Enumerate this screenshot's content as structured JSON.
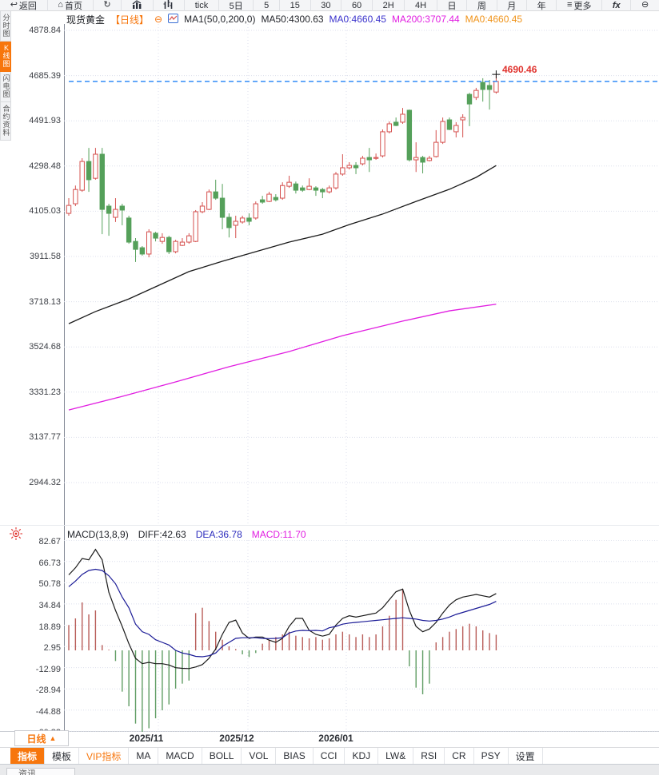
{
  "toolbar": {
    "items": [
      {
        "icon": "back-icon",
        "label": "返回"
      },
      {
        "icon": "home-icon",
        "label": "首页"
      },
      {
        "icon": "refresh-icon",
        "label": ""
      },
      {
        "icon": "chart-icon",
        "label": ""
      },
      {
        "icon": "volume-icon",
        "label": ""
      },
      {
        "icon": "",
        "label": "tick"
      },
      {
        "icon": "",
        "label": "5日"
      },
      {
        "icon": "",
        "label": "5"
      },
      {
        "icon": "",
        "label": "15"
      },
      {
        "icon": "",
        "label": "30"
      },
      {
        "icon": "",
        "label": "60"
      },
      {
        "icon": "",
        "label": "2H"
      },
      {
        "icon": "",
        "label": "4H"
      },
      {
        "icon": "",
        "label": "日"
      },
      {
        "icon": "",
        "label": "周"
      },
      {
        "icon": "",
        "label": "月"
      },
      {
        "icon": "",
        "label": "年"
      },
      {
        "icon": "menu-icon",
        "label": "更多"
      },
      {
        "icon": "fx-icon",
        "label": "fx"
      },
      {
        "icon": "zoom-out-icon",
        "label": ""
      }
    ]
  },
  "sidebar": {
    "items": [
      {
        "label": "分时图",
        "active": false
      },
      {
        "label": "K线图",
        "active": true
      },
      {
        "label": "闪电图",
        "active": false
      },
      {
        "label": "合约资料",
        "active": false
      }
    ]
  },
  "symbol_header": {
    "name": "现货黄金",
    "period": "【日线】",
    "collapse": "⊖",
    "ma1": "MA1(50,0,200,0)",
    "ma50": "MA50:4300.63",
    "ma0_blue": "MA0:4660.45",
    "ma200": "MA200:3707.44",
    "ma0_orange": "MA0:4660.45"
  },
  "macd_header": {
    "title": "MACD(13,8,9)",
    "diff": "DIFF:42.63",
    "dea": "DEA:36.78",
    "macd": "MACD:11.70"
  },
  "price_flag": "4690.46",
  "period_box": {
    "label": "日线",
    "arrow": "▲"
  },
  "indicator_bar": {
    "tabs": [
      {
        "label": "指标",
        "style": "active"
      },
      {
        "label": "模板",
        "style": ""
      },
      {
        "label": "VIP指标",
        "style": "vip"
      },
      {
        "label": "MA",
        "style": ""
      },
      {
        "label": "MACD",
        "style": ""
      },
      {
        "label": "BOLL",
        "style": ""
      },
      {
        "label": "VOL",
        "style": ""
      },
      {
        "label": "BIAS",
        "style": ""
      },
      {
        "label": "CCI",
        "style": ""
      },
      {
        "label": "KDJ",
        "style": ""
      },
      {
        "label": "LW&",
        "style": ""
      },
      {
        "label": "RSI",
        "style": ""
      },
      {
        "label": "CR",
        "style": ""
      },
      {
        "label": "PSY",
        "style": ""
      },
      {
        "label": "设置",
        "style": ""
      }
    ]
  },
  "bottom_tab": "资讯",
  "colors": {
    "accent_orange": "#f7760c",
    "candle_up": "#d5504e",
    "candle_down": "#55a05a",
    "ma50_line": "#1a1a1a",
    "ma200_line": "#e11ee1",
    "last_price_line": "#1f80f5",
    "flag_red": "#e0332e",
    "macd_bar_up": "#b85c58",
    "macd_bar_down": "#5f9c63",
    "diff_line": "#1a1a1a",
    "dea_line": "#1a1a96",
    "grid": "#dcdfec"
  },
  "chart_data": [
    {
      "type": "candlestick",
      "title": "现货黄金 日线",
      "y_ticks": [
        4878.84,
        4685.39,
        4491.93,
        4298.48,
        4105.03,
        3911.58,
        3718.13,
        3524.68,
        3331.23,
        3137.77,
        2944.32
      ],
      "x_month_labels": [
        {
          "label": "2025/11",
          "x": 183
        },
        {
          "label": "2025/12",
          "x": 296
        },
        {
          "label": "2026/01",
          "x": 420
        }
      ],
      "v_grid_x": [
        198,
        310,
        433
      ],
      "last_price": 4660.45,
      "high_marker": 4690.46,
      "ohlc": [
        [
          4096,
          4161,
          4086,
          4130
        ],
        [
          4137,
          4215,
          4127,
          4198
        ],
        [
          4195,
          4332,
          4188,
          4318
        ],
        [
          4318,
          4376,
          4188,
          4240
        ],
        [
          4246,
          4376,
          4240,
          4349
        ],
        [
          4349,
          4376,
          4007,
          4113
        ],
        [
          4127,
          4137,
          4000,
          4096
        ],
        [
          4079,
          4161,
          4059,
          4113
        ],
        [
          4127,
          4137,
          4045,
          4110
        ],
        [
          4076,
          4086,
          3966,
          3973
        ],
        [
          3976,
          3990,
          3888,
          3942
        ],
        [
          3949,
          3956,
          3915,
          3922
        ],
        [
          3922,
          4028,
          3908,
          4017
        ],
        [
          4011,
          4017,
          3976,
          3990
        ],
        [
          3976,
          4011,
          3966,
          3993
        ],
        [
          3993,
          4000,
          3922,
          3932
        ],
        [
          3932,
          3983,
          3925,
          3976
        ],
        [
          3959,
          3990,
          3956,
          3973
        ],
        [
          3973,
          4011,
          3966,
          4000
        ],
        [
          3976,
          4110,
          3973,
          4103
        ],
        [
          4103,
          4144,
          4096,
          4127
        ],
        [
          4113,
          4198,
          4110,
          4188
        ],
        [
          4188,
          4240,
          4154,
          4161
        ],
        [
          4161,
          4222,
          4028,
          4079
        ],
        [
          4079,
          4096,
          3993,
          4035
        ],
        [
          4045,
          4086,
          3990,
          4062
        ],
        [
          4059,
          4086,
          4052,
          4076
        ],
        [
          4076,
          4096,
          4045,
          4062
        ],
        [
          4076,
          4147,
          4069,
          4137
        ],
        [
          4154,
          4171,
          4137,
          4144
        ],
        [
          4147,
          4188,
          4144,
          4178
        ],
        [
          4164,
          4178,
          4147,
          4154
        ],
        [
          4161,
          4229,
          4154,
          4215
        ],
        [
          4212,
          4257,
          4205,
          4229
        ],
        [
          4222,
          4232,
          4181,
          4195
        ],
        [
          4205,
          4215,
          4188,
          4195
        ],
        [
          4198,
          4246,
          4195,
          4212
        ],
        [
          4205,
          4212,
          4171,
          4195
        ],
        [
          4198,
          4205,
          4161,
          4188
        ],
        [
          4188,
          4215,
          4181,
          4205
        ],
        [
          4205,
          4273,
          4198,
          4264
        ],
        [
          4264,
          4349,
          4257,
          4291
        ],
        [
          4291,
          4315,
          4284,
          4301
        ],
        [
          4301,
          4315,
          4264,
          4291
        ],
        [
          4308,
          4342,
          4301,
          4332
        ],
        [
          4335,
          4376,
          4273,
          4325
        ],
        [
          4332,
          4352,
          4325,
          4335
        ],
        [
          4342,
          4455,
          4335,
          4445
        ],
        [
          4445,
          4489,
          4438,
          4479
        ],
        [
          4486,
          4506,
          4469,
          4472
        ],
        [
          4486,
          4547,
          4479,
          4520
        ],
        [
          4537,
          4540,
          4318,
          4325
        ],
        [
          4325,
          4400,
          4273,
          4335
        ],
        [
          4335,
          4342,
          4267,
          4315
        ],
        [
          4322,
          4342,
          4318,
          4332
        ],
        [
          4339,
          4452,
          4335,
          4400
        ],
        [
          4400,
          4506,
          4393,
          4489
        ],
        [
          4496,
          4506,
          4452,
          4455
        ],
        [
          4445,
          4486,
          4421,
          4472
        ],
        [
          4496,
          4520,
          4421,
          4506
        ],
        [
          4605,
          4612,
          4469,
          4564
        ],
        [
          4592,
          4633,
          4581,
          4622
        ],
        [
          4656,
          4674,
          4574,
          4626
        ],
        [
          4643,
          4667,
          4540,
          4626
        ],
        [
          4615,
          4690.46,
          4608,
          4660.45
        ]
      ],
      "ma50": [
        [
          0,
          3624
        ],
        [
          4,
          3676
        ],
        [
          9,
          3730
        ],
        [
          14,
          3795
        ],
        [
          18,
          3847
        ],
        [
          23,
          3891
        ],
        [
          28,
          3932
        ],
        [
          33,
          3973
        ],
        [
          38,
          4007
        ],
        [
          42,
          4048
        ],
        [
          47,
          4093
        ],
        [
          52,
          4147
        ],
        [
          57,
          4199
        ],
        [
          61,
          4250
        ],
        [
          64,
          4300.63
        ]
      ],
      "ma200": [
        [
          0,
          3255
        ],
        [
          8,
          3313
        ],
        [
          16,
          3375
        ],
        [
          24,
          3440
        ],
        [
          33,
          3505
        ],
        [
          41,
          3573
        ],
        [
          50,
          3635
        ],
        [
          57,
          3679
        ],
        [
          64,
          3707.44
        ]
      ]
    },
    {
      "type": "macd",
      "y_ticks": [
        82.67,
        66.73,
        50.78,
        34.84,
        18.89,
        2.95,
        -12.99,
        -28.94,
        -44.88,
        -60.82
      ],
      "histogram": [
        19,
        24,
        36,
        27,
        30,
        4,
        0.5,
        -8,
        -31,
        -42,
        -55,
        -64.5,
        -58.5,
        -51,
        -45,
        -40.6,
        -28.7,
        -25,
        -22.7,
        28,
        32,
        22,
        14,
        8,
        3,
        1,
        -3,
        -5,
        -2,
        5,
        8,
        10,
        12,
        14,
        11,
        10,
        9,
        10,
        8,
        9,
        12,
        14,
        12,
        10,
        12,
        10,
        12,
        18,
        26,
        38,
        46,
        -12,
        -28,
        -33,
        -25,
        6,
        10,
        14,
        16,
        18,
        20,
        18,
        15,
        13,
        11.7
      ],
      "diff": [
        56.7,
        62,
        69,
        68,
        75.8,
        68,
        43.6,
        30,
        18,
        5,
        -6,
        -10,
        -9,
        -10,
        -10,
        -11,
        -13,
        -13.5,
        -13.7,
        -12.5,
        -10.7,
        -6,
        1,
        12,
        21,
        22.7,
        13,
        9,
        10,
        10,
        7.7,
        6,
        9,
        18,
        24,
        24,
        15,
        12,
        10.7,
        12,
        19,
        24,
        26,
        25,
        26,
        27,
        28,
        32,
        38,
        44,
        46,
        30,
        18,
        14,
        16,
        21,
        28,
        34,
        38,
        40,
        41,
        42,
        41,
        40,
        42.63
      ],
      "dea": [
        47.8,
        52,
        57,
        60,
        60.9,
        60,
        56,
        50,
        40,
        32,
        19.7,
        14,
        12,
        8,
        6,
        4,
        0,
        -2,
        -3,
        -4.5,
        -4.8,
        -4,
        -2,
        3,
        6,
        9,
        9.5,
        9.5,
        9.5,
        9,
        8.8,
        9,
        9.5,
        13,
        14.5,
        15,
        14.8,
        15,
        14.6,
        17,
        18,
        19.7,
        20.5,
        21,
        21.5,
        22,
        22.5,
        23,
        23.5,
        24,
        24.5,
        24,
        23.5,
        22.5,
        22,
        22.5,
        23.5,
        25,
        27,
        28.5,
        30,
        31.5,
        33,
        34.5,
        36.78
      ]
    }
  ]
}
